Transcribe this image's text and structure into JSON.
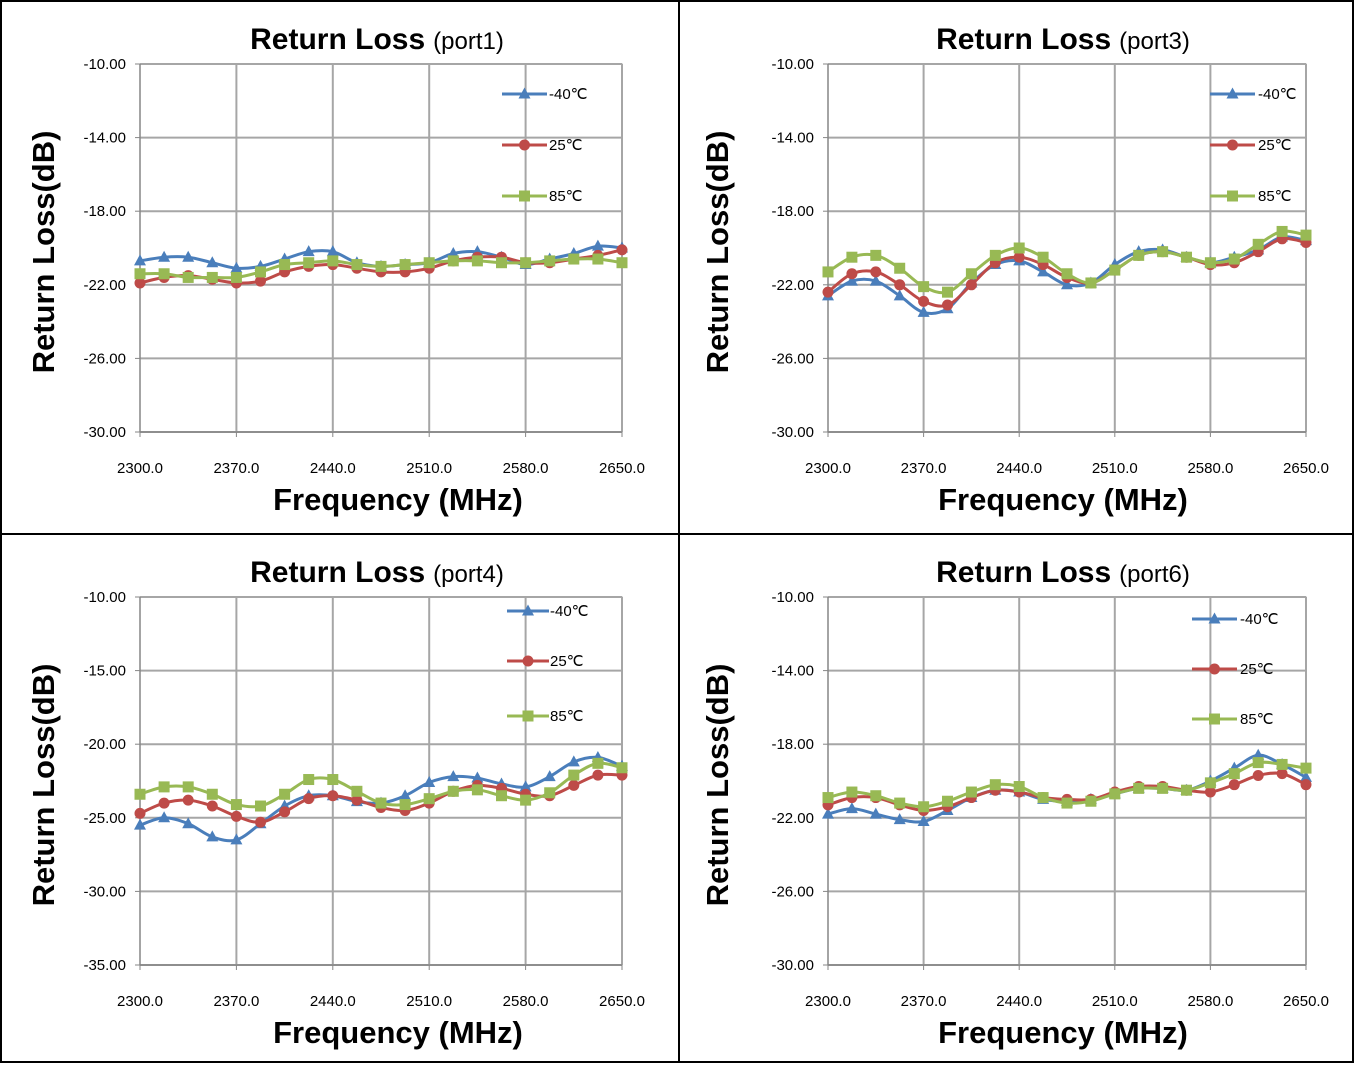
{
  "chart_data": [
    {
      "type": "line",
      "title": "Return Loss",
      "subtitle": "(port1)",
      "xlabel": "Frequency (MHz)",
      "ylabel": "Return Loss(dB)",
      "xlim": [
        2300,
        2650
      ],
      "ylim": [
        -30,
        -10
      ],
      "xticks": [
        2300,
        2370,
        2440,
        2510,
        2580,
        2650
      ],
      "xtick_labels": [
        "2300.0",
        "2370.0",
        "2440.0",
        "2510.0",
        "2580.0",
        "2650.0"
      ],
      "yticks": [
        -10,
        -14,
        -18,
        -22,
        -26,
        -30
      ],
      "ytick_labels": [
        "-10.00",
        "-14.00",
        "-18.00",
        "-22.00",
        "-26.00",
        "-30.00"
      ],
      "grid": true,
      "legend_position": "top-right",
      "x": [
        2300,
        2317.5,
        2335,
        2352.5,
        2370,
        2387.5,
        2405,
        2422.5,
        2440,
        2457.5,
        2475,
        2492.5,
        2510,
        2527.5,
        2545,
        2562.5,
        2580,
        2597.5,
        2615,
        2632.5,
        2650
      ],
      "series": [
        {
          "name": "-40℃",
          "color": "#4a7ebb",
          "marker": "triangle",
          "values": [
            -20.7,
            -20.5,
            -20.5,
            -20.8,
            -21.1,
            -21.0,
            -20.6,
            -20.2,
            -20.2,
            -20.8,
            -21.0,
            -20.9,
            -20.8,
            -20.3,
            -20.2,
            -20.5,
            -20.9,
            -20.6,
            -20.3,
            -19.9,
            -20.0
          ]
        },
        {
          "name": "25℃",
          "color": "#be4b48",
          "marker": "circle",
          "values": [
            -21.9,
            -21.6,
            -21.5,
            -21.7,
            -21.9,
            -21.8,
            -21.3,
            -21.0,
            -20.9,
            -21.1,
            -21.3,
            -21.3,
            -21.1,
            -20.7,
            -20.5,
            -20.5,
            -20.8,
            -20.8,
            -20.6,
            -20.4,
            -20.1
          ]
        },
        {
          "name": "85℃",
          "color": "#98b954",
          "marker": "square",
          "values": [
            -21.4,
            -21.4,
            -21.6,
            -21.6,
            -21.6,
            -21.3,
            -20.9,
            -20.8,
            -20.7,
            -20.9,
            -21.0,
            -20.9,
            -20.8,
            -20.7,
            -20.7,
            -20.8,
            -20.8,
            -20.7,
            -20.6,
            -20.6,
            -20.8
          ]
        }
      ]
    },
    {
      "type": "line",
      "title": "Return Loss",
      "subtitle": "(port3)",
      "xlabel": "Frequency (MHz)",
      "ylabel": "Return Loss(dB)",
      "xlim": [
        2300,
        2650
      ],
      "ylim": [
        -30,
        -10
      ],
      "xticks": [
        2300,
        2370,
        2440,
        2510,
        2580,
        2650
      ],
      "xtick_labels": [
        "2300.0",
        "2370.0",
        "2440.0",
        "2510.0",
        "2580.0",
        "2650.0"
      ],
      "yticks": [
        -10,
        -14,
        -18,
        -22,
        -26,
        -30
      ],
      "ytick_labels": [
        "-10.00",
        "-14.00",
        "-18.00",
        "-22.00",
        "-26.00",
        "-30.00"
      ],
      "grid": true,
      "legend_position": "top-right",
      "x": [
        2300,
        2317.5,
        2335,
        2352.5,
        2370,
        2387.5,
        2405,
        2422.5,
        2440,
        2457.5,
        2475,
        2492.5,
        2510,
        2527.5,
        2545,
        2562.5,
        2580,
        2597.5,
        2615,
        2632.5,
        2650
      ],
      "series": [
        {
          "name": "-40℃",
          "color": "#4a7ebb",
          "marker": "triangle",
          "values": [
            -22.6,
            -21.8,
            -21.8,
            -22.6,
            -23.5,
            -23.3,
            -21.9,
            -20.9,
            -20.7,
            -21.3,
            -22.0,
            -21.9,
            -20.9,
            -20.2,
            -20.1,
            -20.5,
            -20.8,
            -20.5,
            -20.1,
            -19.4,
            -19.6
          ]
        },
        {
          "name": "25℃",
          "color": "#be4b48",
          "marker": "circle",
          "values": [
            -22.4,
            -21.4,
            -21.3,
            -22.0,
            -22.9,
            -23.1,
            -22.0,
            -20.8,
            -20.5,
            -20.9,
            -21.6,
            -21.9,
            -21.2,
            -20.4,
            -20.2,
            -20.5,
            -20.9,
            -20.8,
            -20.2,
            -19.5,
            -19.7
          ]
        },
        {
          "name": "85℃",
          "color": "#98b954",
          "marker": "square",
          "values": [
            -21.3,
            -20.5,
            -20.4,
            -21.1,
            -22.1,
            -22.4,
            -21.4,
            -20.4,
            -20.0,
            -20.5,
            -21.4,
            -21.9,
            -21.2,
            -20.4,
            -20.2,
            -20.5,
            -20.8,
            -20.6,
            -19.8,
            -19.1,
            -19.3
          ]
        }
      ]
    },
    {
      "type": "line",
      "title": "Return Loss",
      "subtitle": "(port4)",
      "xlabel": "Frequency (MHz)",
      "ylabel": "Return Loss(dB)",
      "xlim": [
        2300,
        2650
      ],
      "ylim": [
        -35,
        -10
      ],
      "xticks": [
        2300,
        2370,
        2440,
        2510,
        2580,
        2650
      ],
      "xtick_labels": [
        "2300.0",
        "2370.0",
        "2440.0",
        "2510.0",
        "2580.0",
        "2650.0"
      ],
      "yticks": [
        -10,
        -15,
        -20,
        -25,
        -30,
        -35
      ],
      "ytick_labels": [
        "-10.00",
        "-15.00",
        "-20.00",
        "-25.00",
        "-30.00",
        "-35.00"
      ],
      "grid": true,
      "legend_position": "top-right",
      "x": [
        2300,
        2317.5,
        2335,
        2352.5,
        2370,
        2387.5,
        2405,
        2422.5,
        2440,
        2457.5,
        2475,
        2492.5,
        2510,
        2527.5,
        2545,
        2562.5,
        2580,
        2597.5,
        2615,
        2632.5,
        2650
      ],
      "series": [
        {
          "name": "-40℃",
          "color": "#4a7ebb",
          "marker": "triangle",
          "values": [
            -25.5,
            -25.0,
            -25.4,
            -26.3,
            -26.5,
            -25.4,
            -24.2,
            -23.5,
            -23.5,
            -23.9,
            -24.0,
            -23.5,
            -22.6,
            -22.2,
            -22.3,
            -22.7,
            -22.9,
            -22.2,
            -21.2,
            -20.9,
            -21.5
          ]
        },
        {
          "name": "25℃",
          "color": "#be4b48",
          "marker": "circle",
          "values": [
            -24.7,
            -24.0,
            -23.8,
            -24.2,
            -24.9,
            -25.3,
            -24.6,
            -23.7,
            -23.5,
            -23.8,
            -24.3,
            -24.5,
            -24.0,
            -23.2,
            -22.8,
            -23.0,
            -23.4,
            -23.5,
            -22.8,
            -22.1,
            -22.1
          ]
        },
        {
          "name": "85℃",
          "color": "#98b954",
          "marker": "square",
          "values": [
            -23.4,
            -22.9,
            -22.9,
            -23.4,
            -24.1,
            -24.2,
            -23.4,
            -22.4,
            -22.4,
            -23.2,
            -24.0,
            -24.1,
            -23.7,
            -23.2,
            -23.1,
            -23.5,
            -23.8,
            -23.3,
            -22.1,
            -21.3,
            -21.6
          ]
        }
      ]
    },
    {
      "type": "line",
      "title": "Return Loss",
      "subtitle": "(port6)",
      "xlabel": "Frequency (MHz)",
      "ylabel": "Return Loss(dB)",
      "xlim": [
        2300,
        2650
      ],
      "ylim": [
        -30,
        -10
      ],
      "xticks": [
        2300,
        2370,
        2440,
        2510,
        2580,
        2650
      ],
      "xtick_labels": [
        "2300.0",
        "2370.0",
        "2440.0",
        "2510.0",
        "2580.0",
        "2650.0"
      ],
      "yticks": [
        -10,
        -14,
        -18,
        -22,
        -26,
        -30
      ],
      "ytick_labels": [
        "-10.00",
        "-14.00",
        "-18.00",
        "-22.00",
        "-26.00",
        "-30.00"
      ],
      "grid": true,
      "legend_position": "top-right",
      "x": [
        2300,
        2317.5,
        2335,
        2352.5,
        2370,
        2387.5,
        2405,
        2422.5,
        2440,
        2457.5,
        2475,
        2492.5,
        2510,
        2527.5,
        2545,
        2562.5,
        2580,
        2597.5,
        2615,
        2632.5,
        2650
      ],
      "series": [
        {
          "name": "-40℃",
          "color": "#4a7ebb",
          "marker": "triangle",
          "values": [
            -21.8,
            -21.5,
            -21.8,
            -22.1,
            -22.2,
            -21.6,
            -20.9,
            -20.5,
            -20.6,
            -21.0,
            -21.1,
            -21.0,
            -20.7,
            -20.4,
            -20.4,
            -20.5,
            -20.0,
            -19.3,
            -18.6,
            -19.1,
            -19.8
          ]
        },
        {
          "name": "25℃",
          "color": "#be4b48",
          "marker": "circle",
          "values": [
            -21.3,
            -20.9,
            -20.9,
            -21.3,
            -21.6,
            -21.4,
            -20.9,
            -20.5,
            -20.6,
            -20.9,
            -21.0,
            -21.0,
            -20.6,
            -20.3,
            -20.3,
            -20.5,
            -20.6,
            -20.2,
            -19.7,
            -19.6,
            -20.2
          ]
        },
        {
          "name": "85℃",
          "color": "#98b954",
          "marker": "square",
          "values": [
            -20.9,
            -20.6,
            -20.8,
            -21.2,
            -21.4,
            -21.1,
            -20.6,
            -20.2,
            -20.3,
            -20.9,
            -21.2,
            -21.1,
            -20.7,
            -20.4,
            -20.4,
            -20.5,
            -20.1,
            -19.6,
            -19.0,
            -19.1,
            -19.3
          ]
        }
      ]
    }
  ]
}
